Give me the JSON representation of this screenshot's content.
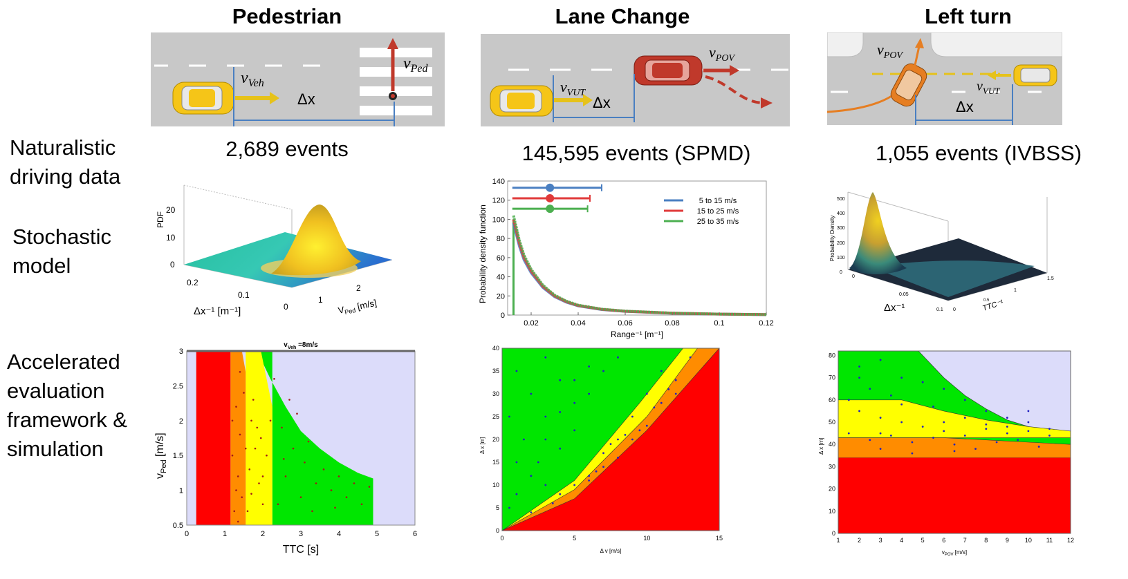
{
  "columns": [
    {
      "title": "Pedestrian",
      "count": "2,689 events"
    },
    {
      "title": "Lane Change",
      "count": "145,595 events (SPMD)"
    },
    {
      "title": "Left turn",
      "count": "1,055 events (IVBSS)"
    }
  ],
  "rows": {
    "naturalistic": [
      "Naturalistic",
      "driving  data"
    ],
    "stochastic": [
      "Stochastic",
      "model"
    ],
    "accelerated": [
      "Accelerated",
      "evaluation",
      "framework &",
      "simulation"
    ]
  },
  "scenes": {
    "ped": {
      "v_veh": "v",
      "v_veh_sub": "Veh",
      "v_ped": "v",
      "v_ped_sub": "Ped",
      "dx": "Δx"
    },
    "lane": {
      "v_vut": "v",
      "v_vut_sub": "VUT",
      "v_pov": "v",
      "v_pov_sub": "POV",
      "dx": "Δx"
    },
    "left": {
      "v_pov": "v",
      "v_pov_sub": "POV",
      "v_vut": "v",
      "v_vut_sub": "VUT",
      "dx": "Δx"
    }
  },
  "colors": {
    "red": "#ff0000",
    "orange": "#ff8c00",
    "yellow": "#ffff00",
    "green": "#00e600",
    "lavender": "#dcdcfa",
    "road": "#c8c8c8",
    "car": "#f5c518",
    "car_red": "#c0392b",
    "arrow_red": "#c0392b"
  },
  "chart_data": [
    {
      "type": "surface",
      "id": "ped-pdf",
      "zlabel": "PDF",
      "xlabel": "Δx⁻¹ [m⁻¹]",
      "ylabel": "V",
      "ylabel_sub": "Ped",
      "ylabel_unit": " [m/s]",
      "z_ticks": [
        "0",
        "10",
        "20"
      ],
      "x_ticks": [
        "0.2",
        "0.1",
        "0"
      ],
      "y_ticks": [
        "1",
        "2"
      ]
    },
    {
      "type": "line",
      "id": "lane-pdf",
      "xlabel": "Range⁻¹ [m⁻¹]",
      "ylabel": "Probability density function",
      "xlim": [
        0.01,
        0.12
      ],
      "ylim": [
        0,
        140
      ],
      "x_ticks": [
        "0.02",
        "0.04",
        "0.06",
        "0.08",
        "0.1",
        "0.12"
      ],
      "y_ticks": [
        "0",
        "20",
        "40",
        "60",
        "80",
        "100",
        "120",
        "140"
      ],
      "legend_position": "top-right",
      "series": [
        {
          "name": "5 to 15 m/s",
          "color": "#4a7fc1",
          "mean": 0.028,
          "range": [
            0.012,
            0.05
          ],
          "row_y": 133
        },
        {
          "name": "15 to 25 m/s",
          "color": "#e03a3a",
          "mean": 0.028,
          "range": [
            0.012,
            0.045
          ],
          "row_y": 122
        },
        {
          "name": "25 to 35 m/s",
          "color": "#4caf50",
          "mean": 0.028,
          "range": [
            0.012,
            0.044
          ],
          "row_y": 111
        }
      ],
      "curve": {
        "x": [
          0.0125,
          0.0135,
          0.015,
          0.017,
          0.02,
          0.025,
          0.03,
          0.035,
          0.04,
          0.05,
          0.06,
          0.08,
          0.1,
          0.12
        ],
        "y": [
          100,
          90,
          75,
          60,
          46,
          30,
          20,
          14,
          10,
          6,
          4,
          2,
          1,
          0.5
        ]
      }
    },
    {
      "type": "surface",
      "id": "left-pdf",
      "zlabel": "Probability Density",
      "xlabel": "Δx⁻¹",
      "ylabel": "TTC⁻¹",
      "z_ticks": [
        "0",
        "100",
        "200",
        "300",
        "400",
        "500"
      ],
      "x_ticks": [
        "0.1",
        "0.05",
        "0"
      ],
      "y_ticks": [
        "0",
        "0.5",
        "1",
        "1.5"
      ]
    },
    {
      "type": "region",
      "id": "ped-region",
      "title": "v",
      "title_sub": "Veh",
      "title_rest": " =8m/s",
      "xlabel": "TTC [s]",
      "ylabel": "v",
      "ylabel_sub": "Ped",
      "ylabel_unit": " [m/s]",
      "xlim": [
        0,
        6
      ],
      "ylim": [
        0.5,
        3
      ],
      "x_ticks": [
        "0",
        "1",
        "2",
        "3",
        "4",
        "5",
        "6"
      ],
      "y_ticks": [
        "0.5",
        "1",
        "1.5",
        "2",
        "2.5",
        "3"
      ],
      "boundaries": {
        "red_end": 1.15,
        "orange_end": 1.55,
        "yellow_end": 2.25,
        "green_end": 4.9
      },
      "green_curve": {
        "x": [
          1.85,
          2.2,
          2.6,
          3.0,
          3.5,
          4.0,
          4.5,
          4.9
        ],
        "y": [
          3.0,
          2.6,
          2.2,
          1.85,
          1.6,
          1.4,
          1.25,
          1.17
        ]
      },
      "points": [
        [
          1.3,
          2.2
        ],
        [
          1.4,
          1.8
        ],
        [
          1.2,
          1.5
        ],
        [
          1.35,
          1.2
        ],
        [
          1.45,
          0.9
        ],
        [
          1.25,
          0.7
        ],
        [
          1.5,
          2.4
        ],
        [
          1.3,
          1.0
        ],
        [
          1.7,
          2.0
        ],
        [
          1.8,
          1.6
        ],
        [
          1.65,
          1.3
        ],
        [
          1.9,
          1.1
        ],
        [
          2.0,
          0.8
        ],
        [
          1.75,
          2.3
        ],
        [
          1.85,
          1.9
        ],
        [
          2.1,
          1.5
        ],
        [
          1.6,
          0.7
        ],
        [
          2.0,
          1.2
        ],
        [
          2.5,
          1.9
        ],
        [
          2.8,
          1.6
        ],
        [
          3.1,
          1.4
        ],
        [
          2.6,
          1.2
        ],
        [
          3.4,
          1.1
        ],
        [
          3.8,
          1.0
        ],
        [
          2.4,
          0.8
        ],
        [
          3.0,
          0.9
        ],
        [
          4.2,
          0.9
        ],
        [
          4.6,
          0.8
        ],
        [
          2.9,
          2.1
        ],
        [
          3.6,
          1.3
        ],
        [
          4.0,
          1.2
        ],
        [
          3.3,
          0.7
        ],
        [
          2.3,
          2.6
        ],
        [
          2.7,
          2.3
        ],
        [
          4.4,
          1.1
        ],
        [
          1.4,
          2.7
        ],
        [
          1.55,
          1.6
        ],
        [
          1.2,
          2.0
        ],
        [
          1.95,
          1.75
        ],
        [
          2.2,
          2.0
        ],
        [
          3.2,
          1.7
        ],
        [
          4.8,
          1.05
        ],
        [
          3.9,
          0.75
        ],
        [
          2.55,
          1.45
        ],
        [
          1.7,
          0.95
        ],
        [
          1.35,
          0.55
        ]
      ]
    },
    {
      "type": "region",
      "id": "lane-region",
      "xlabel": "Δ v [m/s]",
      "ylabel": "Δ x [m]",
      "xlim": [
        0,
        15
      ],
      "ylim": [
        0,
        40
      ],
      "x_ticks": [
        "0",
        "5",
        "10",
        "15"
      ],
      "y_ticks": [
        "0",
        "5",
        "10",
        "15",
        "20",
        "25",
        "30",
        "35",
        "40"
      ],
      "curves": {
        "c1": {
          "x": [
            0,
            5,
            9.5,
            12.5
          ],
          "y": [
            0,
            11,
            28,
            40
          ]
        },
        "c2": {
          "x": [
            0,
            5,
            10,
            13.5
          ],
          "y": [
            0,
            9,
            25,
            40
          ]
        },
        "c3": {
          "x": [
            0,
            5,
            10,
            15
          ],
          "y": [
            0,
            7,
            22,
            40
          ]
        }
      },
      "points": [
        [
          1,
          35
        ],
        [
          2,
          30
        ],
        [
          3,
          25
        ],
        [
          4,
          33
        ],
        [
          5,
          28
        ],
        [
          6,
          36
        ],
        [
          1.5,
          20
        ],
        [
          2.5,
          15
        ],
        [
          3,
          10
        ],
        [
          4,
          18
        ],
        [
          5,
          22
        ],
        [
          6,
          30
        ],
        [
          7,
          35
        ],
        [
          8,
          38
        ],
        [
          0.5,
          5
        ],
        [
          1,
          8
        ],
        [
          2,
          4
        ],
        [
          3.5,
          6
        ],
        [
          6,
          12
        ],
        [
          7,
          17
        ],
        [
          8,
          20
        ],
        [
          9,
          25
        ],
        [
          10,
          30
        ],
        [
          11,
          35
        ],
        [
          5,
          10
        ],
        [
          7,
          14
        ],
        [
          9,
          20
        ],
        [
          11,
          28
        ],
        [
          12,
          33
        ],
        [
          13,
          38
        ],
        [
          4,
          8
        ],
        [
          6,
          11
        ],
        [
          8,
          16
        ],
        [
          10,
          23
        ],
        [
          12,
          30
        ],
        [
          9.5,
          22
        ],
        [
          10.5,
          27
        ],
        [
          11.5,
          31
        ],
        [
          2,
          12
        ],
        [
          3,
          20
        ],
        [
          4,
          26
        ],
        [
          5,
          33
        ],
        [
          1,
          15
        ],
        [
          0.5,
          25
        ],
        [
          3,
          38
        ],
        [
          7.5,
          19
        ],
        [
          8.5,
          21
        ],
        [
          6.5,
          13
        ]
      ]
    },
    {
      "type": "region",
      "id": "left-region",
      "xlabel": "v",
      "xlabel_sub": "POV",
      "xlabel_unit": " [m/s]",
      "ylabel": "Δ x [m]",
      "xlim": [
        1,
        12
      ],
      "ylim": [
        0,
        82
      ],
      "x_ticks": [
        "1",
        "2",
        "3",
        "4",
        "5",
        "6",
        "7",
        "8",
        "9",
        "10",
        "11",
        "12"
      ],
      "y_ticks": [
        "0",
        "10",
        "20",
        "30",
        "40",
        "50",
        "60",
        "70",
        "80"
      ],
      "red_top": 34,
      "orange_top": 43,
      "yellow_curve": {
        "x": [
          1,
          4,
          6,
          8,
          10,
          12
        ],
        "y": [
          60,
          60,
          55,
          51,
          48,
          46
        ]
      },
      "green_curve": {
        "x": [
          4.8,
          6,
          7,
          8,
          9,
          10,
          11,
          12
        ],
        "y": [
          82,
          70,
          62,
          56,
          51,
          48,
          45,
          43
        ]
      },
      "points": [
        [
          2,
          75
        ],
        [
          3,
          78
        ],
        [
          4,
          70
        ],
        [
          2.5,
          65
        ],
        [
          3.5,
          62
        ],
        [
          5,
          68
        ],
        [
          6,
          65
        ],
        [
          7,
          60
        ],
        [
          8,
          55
        ],
        [
          9,
          52
        ],
        [
          10,
          50
        ],
        [
          11,
          47
        ],
        [
          2,
          55
        ],
        [
          3,
          52
        ],
        [
          4,
          50
        ],
        [
          5,
          48
        ],
        [
          6,
          46
        ],
        [
          7,
          44
        ],
        [
          8,
          47
        ],
        [
          9,
          45
        ],
        [
          10,
          46
        ],
        [
          11,
          44
        ],
        [
          1.5,
          45
        ],
        [
          2.5,
          42
        ],
        [
          3.5,
          44
        ],
        [
          4.5,
          41
        ],
        [
          5.5,
          43
        ],
        [
          6.5,
          40
        ],
        [
          7.5,
          38
        ],
        [
          8.5,
          41
        ],
        [
          9.5,
          42
        ],
        [
          10.5,
          39
        ],
        [
          6,
          50
        ],
        [
          5.5,
          57
        ],
        [
          4,
          58
        ],
        [
          3,
          45
        ],
        [
          8,
          49
        ],
        [
          7,
          52
        ],
        [
          9,
          48
        ],
        [
          1.5,
          60
        ],
        [
          2,
          70
        ],
        [
          3,
          38
        ],
        [
          4.5,
          36
        ],
        [
          6.5,
          37
        ],
        [
          10,
          55
        ]
      ]
    }
  ]
}
